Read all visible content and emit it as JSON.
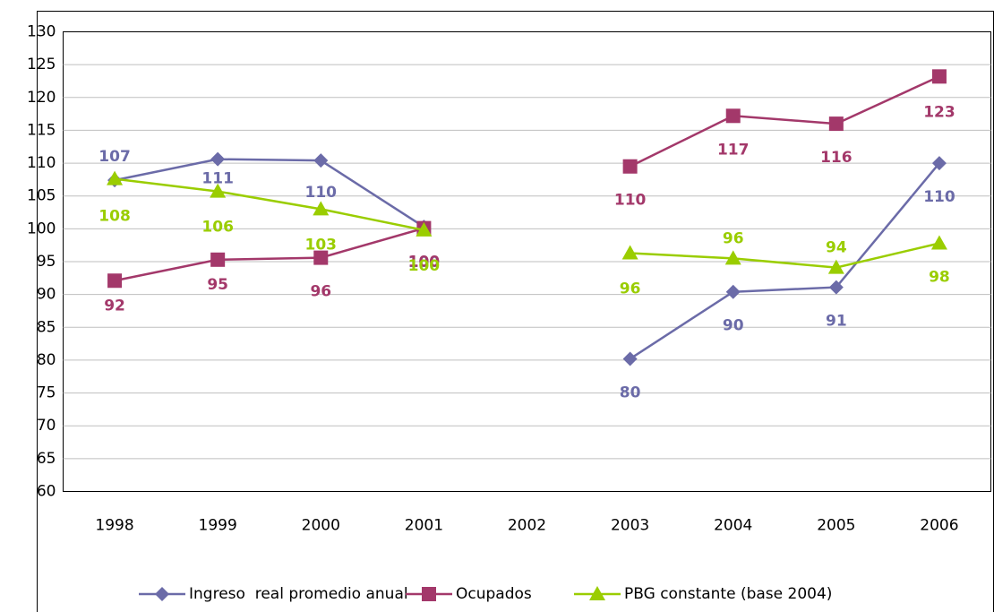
{
  "chart_data": {
    "type": "line",
    "categories": [
      "1998",
      "1999",
      "2000",
      "2001",
      "2002",
      "2003",
      "2004",
      "2005",
      "2006"
    ],
    "series": [
      {
        "name": "Ingreso  real promedio anual",
        "color": "#6b6ba8",
        "values": [
          107.4,
          110.6,
          110.4,
          100.3,
          null,
          80.2,
          90.4,
          91.1,
          110.0
        ],
        "value_labels": [
          "107",
          "111",
          "110",
          "100",
          null,
          "80",
          "90",
          "91",
          "110"
        ]
      },
      {
        "name": "Ocupados",
        "color": "#a3386a",
        "values": [
          92.1,
          95.3,
          95.6,
          100.1,
          null,
          109.5,
          117.2,
          116.0,
          123.2
        ],
        "value_labels": [
          "92",
          "95",
          "96",
          "100",
          null,
          "110",
          "117",
          "116",
          "123"
        ]
      },
      {
        "name": "PBG constante (base 2004)",
        "color": "#9acd00",
        "values": [
          107.6,
          105.7,
          103.0,
          99.8,
          null,
          96.3,
          95.5,
          94.1,
          97.8
        ],
        "value_labels": [
          "108",
          "106",
          "103",
          "100",
          null,
          "96",
          "96",
          "94",
          "98"
        ]
      }
    ],
    "ylim": [
      60,
      130
    ],
    "yticks": [
      60,
      65,
      70,
      75,
      80,
      85,
      90,
      95,
      100,
      105,
      110,
      115,
      120,
      125,
      130
    ],
    "grid": true,
    "legend": "bottom"
  }
}
